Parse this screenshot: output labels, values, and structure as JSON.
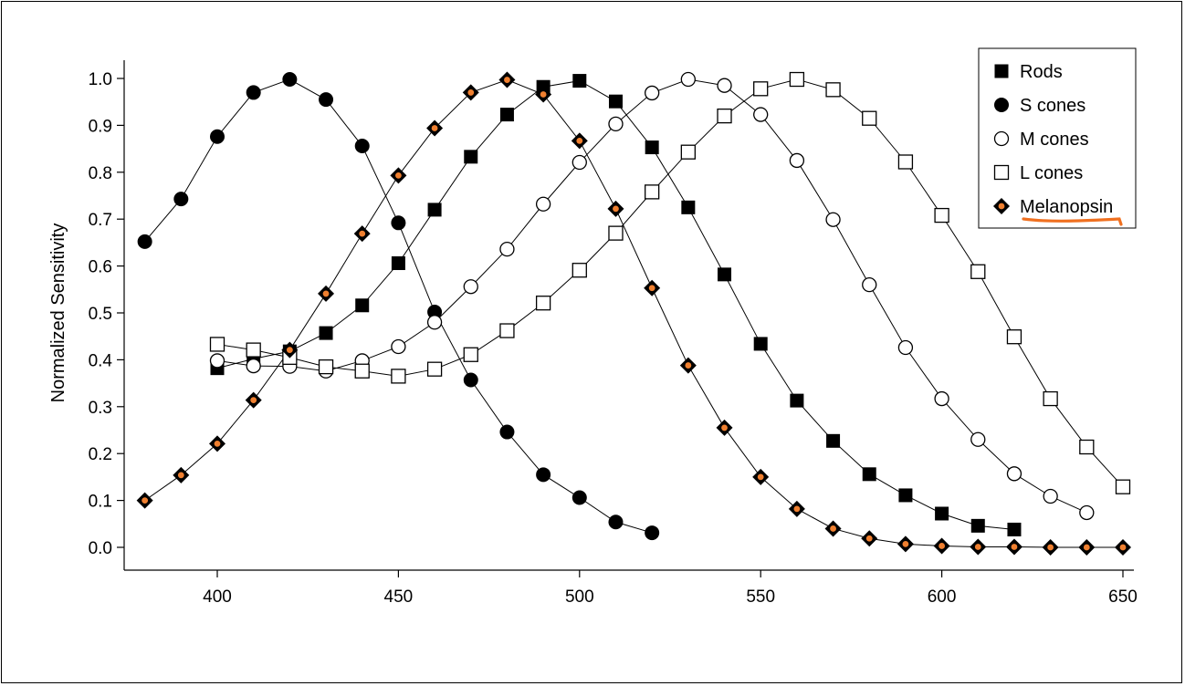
{
  "chart_data": {
    "type": "line",
    "title": "",
    "xlabel": "",
    "ylabel": "Normalized Sensitivity",
    "xlim": [
      375,
      652
    ],
    "ylim": [
      -0.05,
      1.05
    ],
    "x_ticks": [
      "400",
      "450",
      "500",
      "550",
      "600",
      "650"
    ],
    "y_ticks": [
      "0.0",
      "0.1",
      "0.2",
      "0.3",
      "0.4",
      "0.5",
      "0.6",
      "0.7",
      "0.8",
      "0.9",
      "1.0"
    ],
    "grid": false,
    "legend_position": "top-right",
    "series": [
      {
        "name": "Rods",
        "marker": "filled-square",
        "x": [
          400,
          410,
          420,
          430,
          440,
          450,
          460,
          470,
          480,
          490,
          500,
          510,
          520,
          530,
          540,
          550,
          560,
          570,
          580,
          590,
          600,
          610,
          620
        ],
        "values": [
          0.382,
          0.402,
          0.418,
          0.457,
          0.516,
          0.606,
          0.72,
          0.833,
          0.923,
          0.982,
          0.995,
          0.951,
          0.853,
          0.725,
          0.582,
          0.434,
          0.313,
          0.227,
          0.156,
          0.111,
          0.072,
          0.046,
          0.038
        ]
      },
      {
        "name": "S cones",
        "marker": "filled-circle",
        "x": [
          380,
          390,
          400,
          410,
          420,
          430,
          440,
          450,
          460,
          470,
          480,
          490,
          500,
          510,
          520
        ],
        "values": [
          0.652,
          0.743,
          0.876,
          0.97,
          0.998,
          0.955,
          0.856,
          0.692,
          0.502,
          0.357,
          0.246,
          0.155,
          0.106,
          0.054,
          0.031
        ]
      },
      {
        "name": "M cones",
        "marker": "open-circle",
        "x": [
          400,
          410,
          420,
          430,
          440,
          450,
          460,
          470,
          480,
          490,
          500,
          510,
          520,
          530,
          540,
          550,
          560,
          570,
          580,
          590,
          600,
          610,
          620,
          630,
          640
        ],
        "values": [
          0.398,
          0.387,
          0.386,
          0.376,
          0.398,
          0.428,
          0.48,
          0.556,
          0.636,
          0.732,
          0.821,
          0.903,
          0.969,
          0.998,
          0.985,
          0.923,
          0.825,
          0.699,
          0.56,
          0.426,
          0.317,
          0.23,
          0.157,
          0.109,
          0.074
        ]
      },
      {
        "name": "L cones",
        "marker": "open-square",
        "x": [
          400,
          410,
          420,
          430,
          440,
          450,
          460,
          470,
          480,
          490,
          500,
          510,
          520,
          530,
          540,
          550,
          560,
          570,
          580,
          590,
          600,
          610,
          620,
          630,
          640,
          650
        ],
        "values": [
          0.433,
          0.421,
          0.405,
          0.385,
          0.376,
          0.365,
          0.38,
          0.411,
          0.462,
          0.521,
          0.591,
          0.67,
          0.758,
          0.843,
          0.92,
          0.978,
          0.998,
          0.976,
          0.915,
          0.822,
          0.708,
          0.588,
          0.449,
          0.317,
          0.214,
          0.129
        ]
      },
      {
        "name": "Melanopsin",
        "marker": "diamond",
        "x": [
          380,
          390,
          400,
          410,
          420,
          430,
          440,
          450,
          460,
          470,
          480,
          490,
          500,
          510,
          520,
          530,
          540,
          550,
          560,
          570,
          580,
          590,
          600,
          610,
          620,
          630,
          640,
          650
        ],
        "values": [
          0.1,
          0.154,
          0.221,
          0.314,
          0.421,
          0.541,
          0.669,
          0.793,
          0.894,
          0.97,
          0.997,
          0.966,
          0.867,
          0.722,
          0.553,
          0.388,
          0.255,
          0.15,
          0.082,
          0.04,
          0.019,
          0.007,
          0.003,
          0.001,
          0.001,
          0.0,
          0.0,
          0.0
        ]
      }
    ]
  },
  "colors": {
    "ink": "#000000",
    "melanopsin_dot": "#f08030",
    "annotation_underline": "#f07020"
  }
}
